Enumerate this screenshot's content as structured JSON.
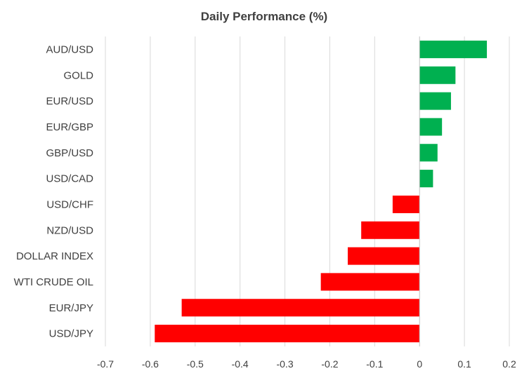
{
  "chart_data": {
    "type": "bar",
    "orientation": "horizontal",
    "title": "Daily Performance  (%)",
    "xlabel": "",
    "ylabel": "",
    "categories": [
      "AUD/USD",
      "GOLD",
      "EUR/USD",
      "EUR/GBP",
      "GBP/USD",
      "USD/CAD",
      "USD/CHF",
      "NZD/USD",
      "DOLLAR INDEX",
      "WTI CRUDE OIL",
      "EUR/JPY",
      "USD/JPY"
    ],
    "values": [
      0.15,
      0.08,
      0.07,
      0.05,
      0.04,
      0.03,
      -0.06,
      -0.13,
      -0.16,
      -0.22,
      -0.53,
      -0.59
    ],
    "xlim": [
      -0.7,
      0.2
    ],
    "ticks": [
      "-0.7",
      "-0.6",
      "-0.5",
      "-0.4",
      "-0.3",
      "-0.2",
      "-0.1",
      "0",
      "0.1",
      "0.2"
    ],
    "tick_values": [
      -0.7,
      -0.6,
      -0.5,
      -0.4,
      -0.3,
      -0.2,
      -0.1,
      0,
      0.1,
      0.2
    ],
    "colors": {
      "positive": "#00b050",
      "negative": "#ff0000"
    },
    "grid": true,
    "legend": "none"
  }
}
